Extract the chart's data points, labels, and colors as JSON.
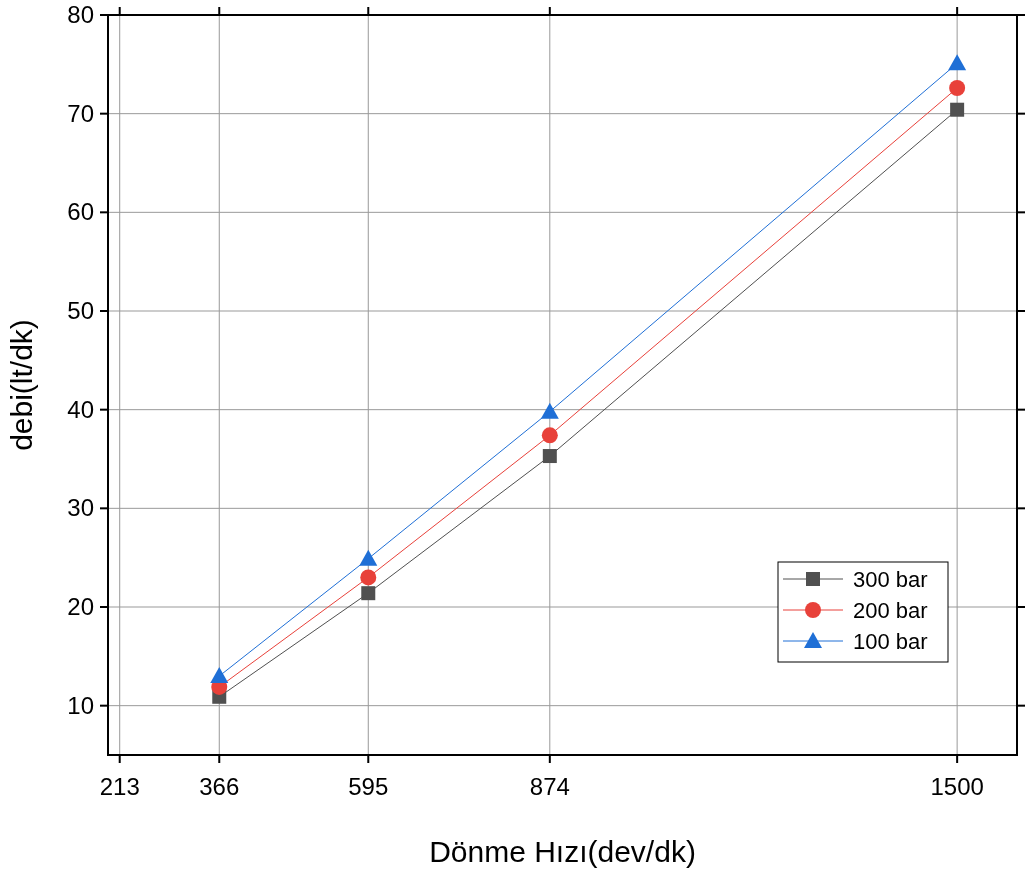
{
  "chart_data": {
    "type": "line",
    "xlabel": "Dönme Hızı(dev/dk)",
    "ylabel": "debi(lt/dk)",
    "x": [
      366,
      595,
      874,
      1500
    ],
    "series": [
      {
        "name": "300 bar",
        "color": "#505050",
        "marker": "square",
        "values": [
          10.9,
          21.4,
          35.3,
          70.4
        ]
      },
      {
        "name": "200 bar",
        "color": "#e8413a",
        "marker": "circle",
        "values": [
          11.9,
          23.0,
          37.4,
          72.6
        ]
      },
      {
        "name": "100 bar",
        "color": "#1f6fd6",
        "marker": "triangle",
        "values": [
          13.0,
          24.9,
          39.8,
          75.1
        ]
      }
    ],
    "xlim": [
      195,
      1592
    ],
    "xticks": [
      213,
      366,
      595,
      874,
      1500
    ],
    "ylim": [
      5,
      80
    ],
    "yticks": [
      10,
      20,
      30,
      40,
      50,
      60,
      70,
      80
    ],
    "grid": true,
    "legend": "bottom right"
  }
}
